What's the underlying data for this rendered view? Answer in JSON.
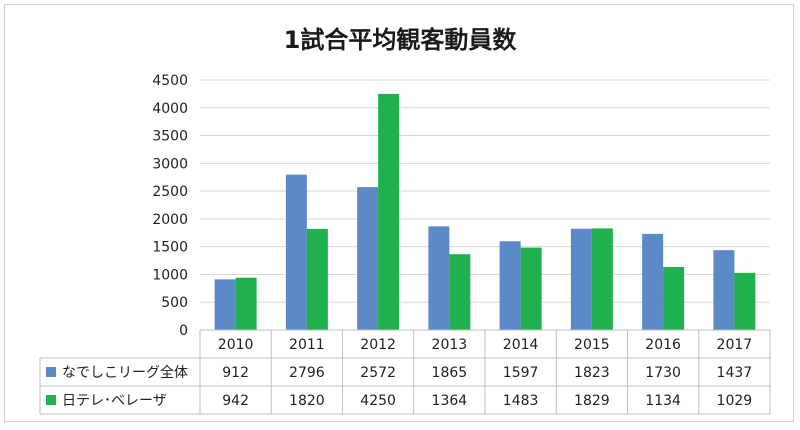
{
  "chart_data": {
    "type": "bar",
    "title": "1試合平均観客動員数",
    "categories": [
      "2010",
      "2011",
      "2012",
      "2013",
      "2014",
      "2015",
      "2016",
      "2017"
    ],
    "series": [
      {
        "name": "なでしこリーグ全体",
        "color": "#5b8ac6",
        "values": [
          912,
          2796,
          2572,
          1865,
          1597,
          1823,
          1730,
          1437
        ]
      },
      {
        "name": "日テレ･ベレーザ",
        "color": "#21b04e",
        "values": [
          942,
          1820,
          4250,
          1364,
          1483,
          1829,
          1134,
          1029
        ]
      }
    ],
    "ylim": [
      0,
      4500
    ],
    "yticks": [
      "0",
      "500",
      "1000",
      "1500",
      "2000",
      "2500",
      "3000",
      "3500",
      "4000",
      "4500"
    ],
    "grid": true,
    "legend": "data-table"
  }
}
